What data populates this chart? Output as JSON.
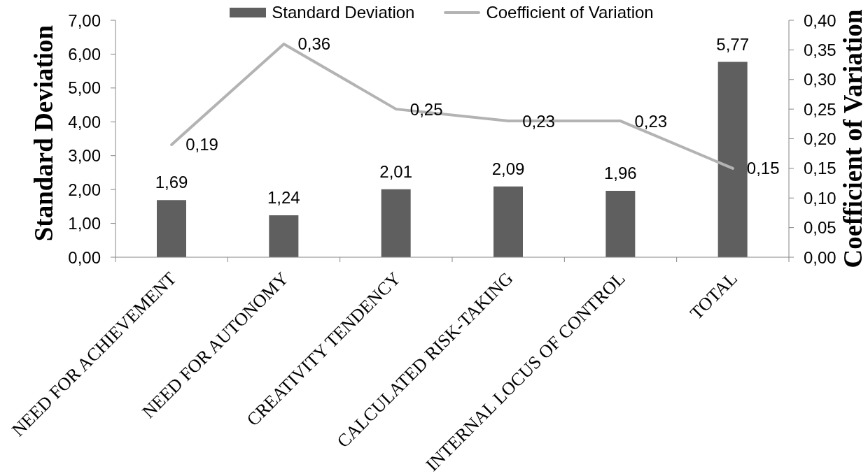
{
  "chart_data": {
    "type": "bar",
    "categories": [
      "NEED FOR ACHIEVEMENT",
      "NEED FOR AUTONOMY",
      "CREATIVITY TENDENCY",
      "CALCULATED RISK-TAKING",
      "INTERNAL LOCUS OF CONTROL",
      "TOTAL"
    ],
    "ylabel": "Standard Deviation",
    "y2label": "Coefficient of Variation",
    "series": [
      {
        "name": "Standard Deviation",
        "color": "#5f5f5f",
        "values": [
          1.69,
          1.24,
          2.01,
          2.09,
          1.96,
          5.77
        ],
        "value_labels": [
          "1,69",
          "1,24",
          "2,01",
          "2,09",
          "1,96",
          "5,77"
        ]
      },
      {
        "name": "Coefficient of Variation",
        "type": "line",
        "axis": "y2",
        "color": "#b3b3b3",
        "marker": "none",
        "values": [
          0.19,
          0.36,
          0.25,
          0.23,
          0.23,
          0.15
        ],
        "value_labels": [
          "0,19",
          "0,36",
          "0,25",
          "0,23",
          "0,23",
          "0,15"
        ]
      }
    ],
    "ylim": [
      0,
      7
    ],
    "yticks": [
      {
        "value": 0,
        "label": "0,00"
      },
      {
        "value": 1,
        "label": "1,00"
      },
      {
        "value": 2,
        "label": "2,00"
      },
      {
        "value": 3,
        "label": "3,00"
      },
      {
        "value": 4,
        "label": "4,00"
      },
      {
        "value": 5,
        "label": "5,00"
      },
      {
        "value": 6,
        "label": "6,00"
      },
      {
        "value": 7,
        "label": "7,00"
      }
    ],
    "y2lim": [
      0,
      0.4
    ],
    "y2ticks": [
      {
        "value": 0,
        "label": "0,00"
      },
      {
        "value": 0.05,
        "label": "0,05"
      },
      {
        "value": 0.1,
        "label": "0,10"
      },
      {
        "value": 0.15,
        "label": "0,15"
      },
      {
        "value": 0.2,
        "label": "0,20"
      },
      {
        "value": 0.25,
        "label": "0,25"
      },
      {
        "value": 0.3,
        "label": "0,30"
      },
      {
        "value": 0.35,
        "label": "0,35"
      },
      {
        "value": 0.4,
        "label": "0,40"
      }
    ],
    "legend": "top",
    "grid": false
  }
}
